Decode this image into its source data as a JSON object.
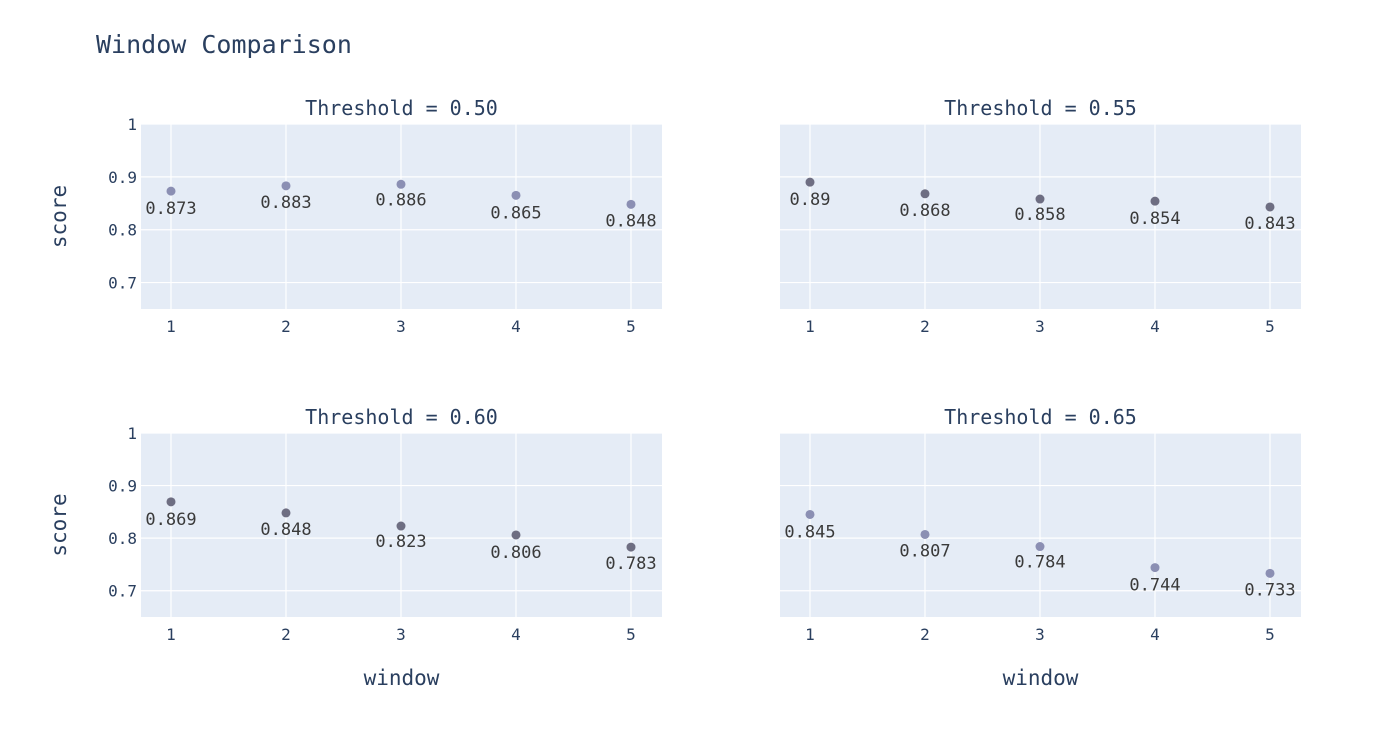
{
  "chart_data": {
    "type": "scatter",
    "title": "Window Comparison",
    "xlabel": "window",
    "ylabel": "score",
    "x": [
      1,
      2,
      3,
      4,
      5
    ],
    "ylim": [
      0.65,
      1.0
    ],
    "yticks": [
      "0.7",
      "0.8",
      "0.9",
      "1"
    ],
    "grid": true,
    "panels": [
      {
        "title": "Threshold = 0.50",
        "marker_color": "#8b8fb3",
        "values": [
          0.873,
          0.883,
          0.886,
          0.865,
          0.848
        ],
        "labels": [
          "0.873",
          "0.883",
          "0.886",
          "0.865",
          "0.848"
        ]
      },
      {
        "title": "Threshold = 0.55",
        "marker_color": "#6e6e82",
        "values": [
          0.89,
          0.868,
          0.858,
          0.854,
          0.843
        ],
        "labels": [
          "0.89",
          "0.868",
          "0.858",
          "0.854",
          "0.843"
        ]
      },
      {
        "title": "Threshold = 0.60",
        "marker_color": "#6e6e82",
        "values": [
          0.869,
          0.848,
          0.823,
          0.806,
          0.783
        ],
        "labels": [
          "0.869",
          "0.848",
          "0.823",
          "0.806",
          "0.783"
        ]
      },
      {
        "title": "Threshold = 0.65",
        "marker_color": "#8b8fb3",
        "values": [
          0.845,
          0.807,
          0.784,
          0.744,
          0.733
        ],
        "labels": [
          "0.845",
          "0.807",
          "0.784",
          "0.744",
          "0.733"
        ]
      }
    ],
    "colors": {
      "plot_bg": "#e5ecf6",
      "grid": "#ffffff",
      "text": "#2a3f5f"
    }
  }
}
